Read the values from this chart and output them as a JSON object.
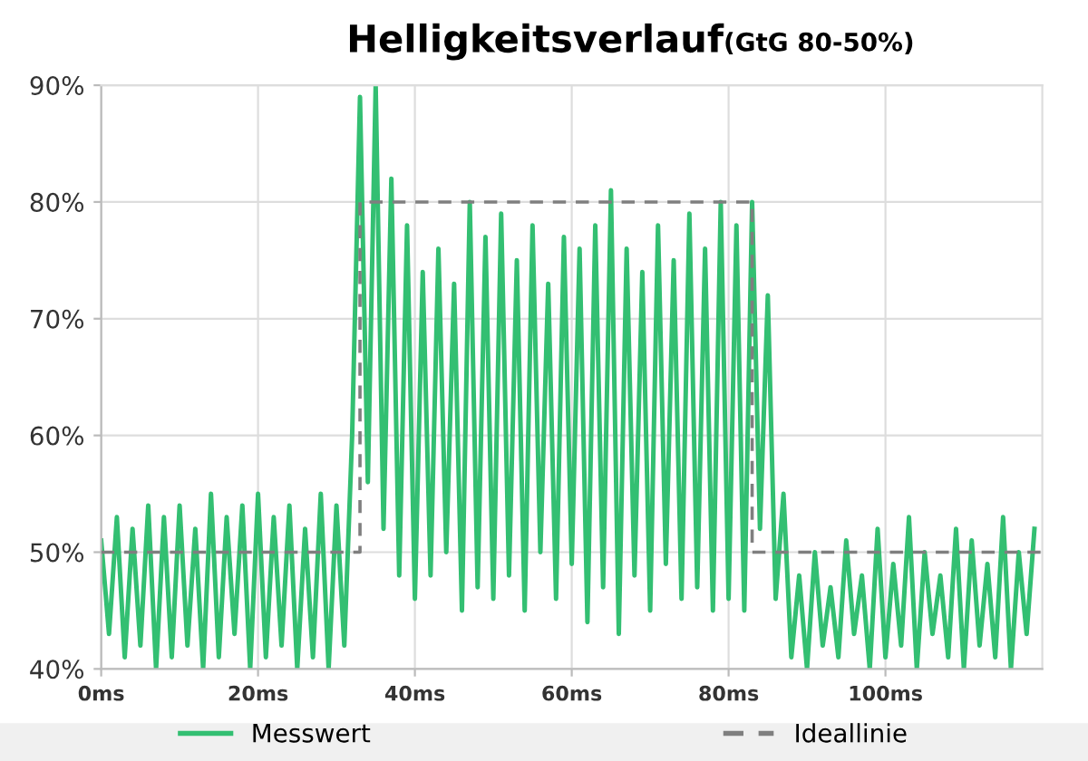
{
  "chart_data": {
    "type": "line",
    "title": "Helligkeitsverlauf",
    "subtitle": "(GtG 80-50%)",
    "xlim": [
      0,
      120
    ],
    "ylim": [
      40,
      90
    ],
    "xticks": [
      {
        "value": 0,
        "label": "0ms"
      },
      {
        "value": 20,
        "label": "20ms"
      },
      {
        "value": 40,
        "label": "40ms"
      },
      {
        "value": 60,
        "label": "60ms"
      },
      {
        "value": 80,
        "label": "80ms"
      },
      {
        "value": 100,
        "label": "100ms"
      }
    ],
    "yticks": [
      {
        "value": 40,
        "label": "40%"
      },
      {
        "value": 50,
        "label": "50%"
      },
      {
        "value": 60,
        "label": "60%"
      },
      {
        "value": 70,
        "label": "70%"
      },
      {
        "value": 80,
        "label": "80%"
      },
      {
        "value": 90,
        "label": "90%"
      }
    ],
    "grid": true,
    "legend": "bottom",
    "series": [
      {
        "name": "Messwert",
        "color": "#33bf72",
        "line_style": "solid",
        "x": [
          0,
          1,
          2,
          3,
          4,
          5,
          6,
          7,
          8,
          9,
          10,
          11,
          12,
          13,
          14,
          15,
          16,
          17,
          18,
          19,
          20,
          21,
          22,
          23,
          24,
          25,
          26,
          27,
          28,
          29,
          30,
          31,
          32,
          33,
          34,
          35,
          36,
          37,
          38,
          39,
          40,
          41,
          42,
          43,
          44,
          45,
          46,
          47,
          48,
          49,
          50,
          51,
          52,
          53,
          54,
          55,
          56,
          57,
          58,
          59,
          60,
          61,
          62,
          63,
          64,
          65,
          66,
          67,
          68,
          69,
          70,
          71,
          72,
          73,
          74,
          75,
          76,
          77,
          78,
          79,
          80,
          81,
          82,
          83,
          84,
          85,
          86,
          87,
          88,
          89,
          90,
          91,
          92,
          93,
          94,
          95,
          96,
          97,
          98,
          99,
          100,
          101,
          102,
          103,
          104,
          105,
          106,
          107,
          108,
          109,
          110,
          111,
          112,
          113,
          114,
          115,
          116,
          117,
          118,
          119
        ],
        "values": [
          51,
          43,
          53,
          41,
          52,
          42,
          54,
          40,
          53,
          41,
          54,
          42,
          52,
          40,
          55,
          41,
          53,
          43,
          54,
          40,
          55,
          41,
          53,
          42,
          54,
          40,
          52,
          41,
          55,
          40,
          54,
          42,
          60,
          89,
          56,
          90,
          52,
          82,
          48,
          78,
          46,
          74,
          48,
          76,
          50,
          73,
          45,
          80,
          47,
          77,
          46,
          79,
          48,
          75,
          45,
          78,
          50,
          73,
          46,
          77,
          49,
          76,
          44,
          78,
          47,
          81,
          43,
          76,
          48,
          74,
          45,
          78,
          49,
          75,
          46,
          79,
          47,
          76,
          45,
          80,
          46,
          78,
          45,
          80,
          52,
          72,
          46,
          55,
          41,
          48,
          40,
          50,
          42,
          47,
          41,
          51,
          43,
          48,
          40,
          52,
          41,
          49,
          42,
          53,
          40,
          50,
          43,
          48,
          41,
          52,
          40,
          51,
          42,
          49,
          41,
          53,
          40,
          50,
          43,
          52
        ]
      },
      {
        "name": "Ideallinie",
        "color": "#7f7f7f",
        "line_style": "dashed",
        "x": [
          0,
          33,
          33,
          83,
          83,
          120
        ],
        "values": [
          50,
          50,
          80,
          80,
          50,
          50
        ]
      }
    ]
  }
}
